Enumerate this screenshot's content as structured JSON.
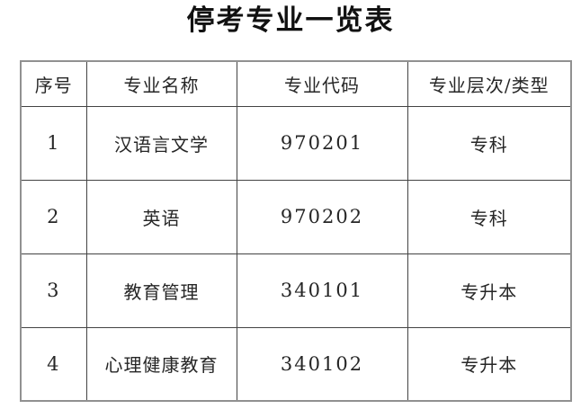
{
  "title": "停考专业一览表",
  "table": {
    "headers": [
      "序号",
      "专业名称",
      "专业代码",
      "专业层次/类型"
    ],
    "rows": [
      [
        "1",
        "汉语言文学",
        "970201",
        "专科"
      ],
      [
        "2",
        "英语",
        "970202",
        "专科"
      ],
      [
        "3",
        "教育管理",
        "340101",
        "专升本"
      ],
      [
        "4",
        "心理健康教育",
        "340102",
        "专升本"
      ]
    ]
  },
  "colors": {
    "text": "#262626",
    "title_text": "#111111",
    "border_outer": "#919191",
    "border_inner": "#434343",
    "background": "#ffffff"
  }
}
